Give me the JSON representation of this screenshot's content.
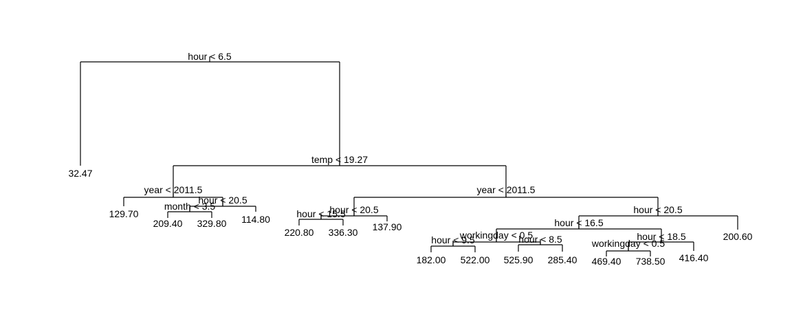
{
  "tree": {
    "splits": [
      {
        "id": "s1",
        "label": "hour < 6.5"
      },
      {
        "id": "s2",
        "label": "temp < 19.27"
      },
      {
        "id": "s3",
        "label": "year < 2011.5"
      },
      {
        "id": "s4",
        "label": "hour < 20.5"
      },
      {
        "id": "s5",
        "label": "month < 3.5"
      },
      {
        "id": "s6",
        "label": "year < 2011.5"
      },
      {
        "id": "s7",
        "label": "hour < 20.5"
      },
      {
        "id": "s8",
        "label": "hour < 15.5"
      },
      {
        "id": "s9",
        "label": "hour < 20.5"
      },
      {
        "id": "s10",
        "label": "hour < 16.5"
      },
      {
        "id": "s11",
        "label": "workingday < 0.5"
      },
      {
        "id": "s12",
        "label": "hour < 9.5"
      },
      {
        "id": "s13",
        "label": "hour < 8.5"
      },
      {
        "id": "s14",
        "label": "hour < 18.5"
      },
      {
        "id": "s15",
        "label": "workingday < 0.5"
      }
    ],
    "leaves": [
      {
        "id": "l1",
        "label": "32.47"
      },
      {
        "id": "l2",
        "label": "129.70"
      },
      {
        "id": "l3",
        "label": "209.40"
      },
      {
        "id": "l4",
        "label": "329.80"
      },
      {
        "id": "l5",
        "label": "114.80"
      },
      {
        "id": "l6",
        "label": "220.80"
      },
      {
        "id": "l7",
        "label": "336.30"
      },
      {
        "id": "l8",
        "label": "137.90"
      },
      {
        "id": "l9",
        "label": "182.00"
      },
      {
        "id": "l10",
        "label": "522.00"
      },
      {
        "id": "l11",
        "label": "525.90"
      },
      {
        "id": "l12",
        "label": "285.40"
      },
      {
        "id": "l13",
        "label": "469.40"
      },
      {
        "id": "l14",
        "label": "738.50"
      },
      {
        "id": "l15",
        "label": "416.40"
      },
      {
        "id": "l16",
        "label": "200.60"
      }
    ]
  }
}
